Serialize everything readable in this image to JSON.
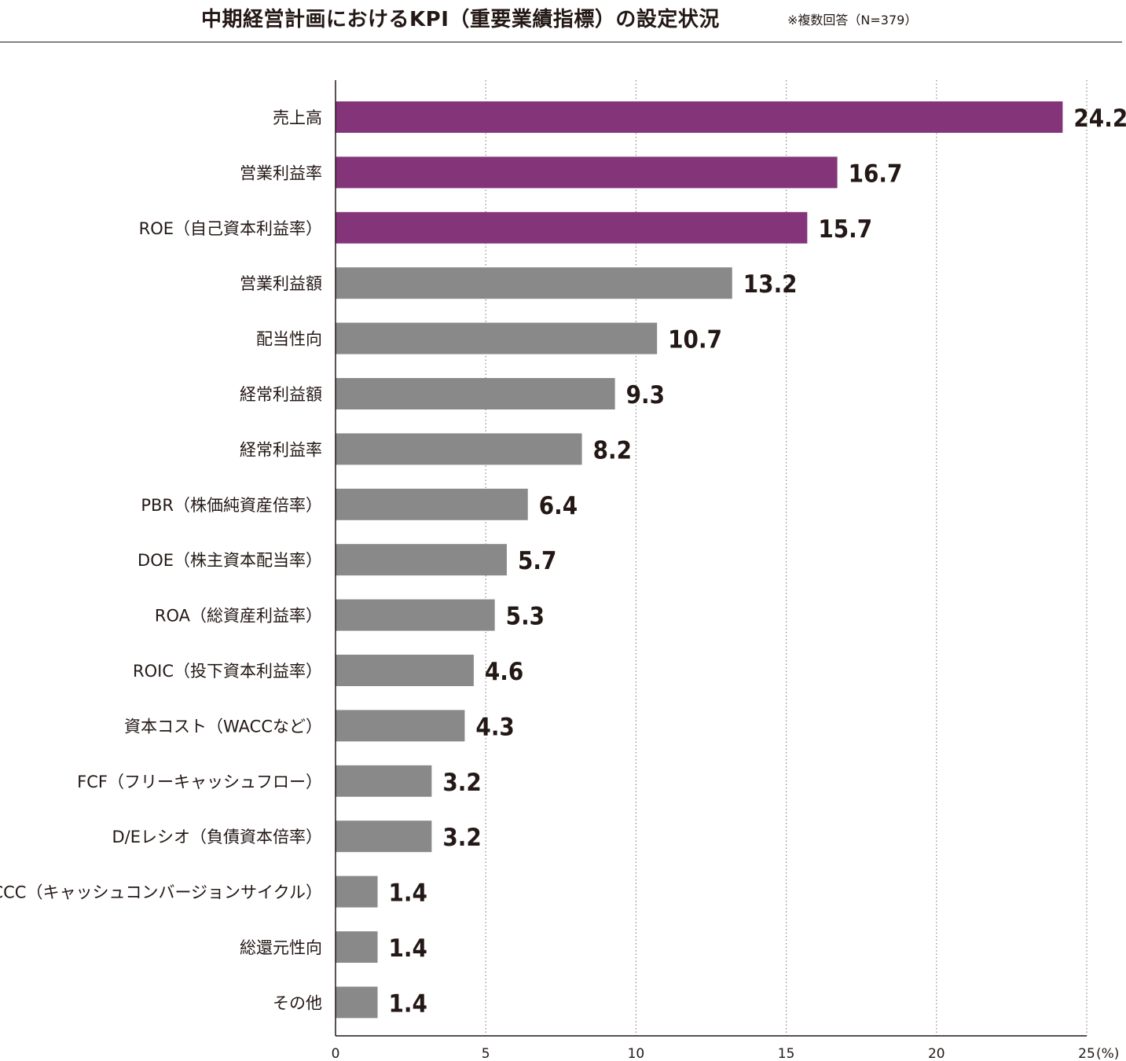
{
  "header": {
    "title": "中期経営計画におけるKPI（重要業績指標）の設定状況",
    "note": "※複数回答（N=379）"
  },
  "colors": {
    "highlight": "#84357A",
    "default": "#898989",
    "text": "#231815"
  },
  "chart_data": {
    "type": "bar",
    "orientation": "horizontal",
    "categories": [
      "売上高",
      "営業利益率",
      "ROE（自己資本利益率）",
      "営業利益額",
      "配当性向",
      "経常利益額",
      "経常利益率",
      "PBR（株価純資産倍率）",
      "DOE（株主資本配当率）",
      "ROA（総資産利益率）",
      "ROIC（投下資本利益率）",
      "資本コスト（WACCなど）",
      "FCF（フリーキャッシュフロー）",
      "D/Eレシオ（負債資本倍率）",
      "CCC（キャッシュコンバージョンサイクル）",
      "総還元性向",
      "その他"
    ],
    "values": [
      24.2,
      16.7,
      15.7,
      13.2,
      10.7,
      9.3,
      8.2,
      6.4,
      5.7,
      5.3,
      4.6,
      4.3,
      3.2,
      3.2,
      1.4,
      1.4,
      1.4
    ],
    "value_labels": [
      "24.2",
      "16.7",
      "15.7",
      "13.2",
      "10.7",
      "9.3",
      "8.2",
      "6.4",
      "5.7",
      "5.3",
      "4.6",
      "4.3",
      "3.2",
      "3.2",
      "1.4",
      "1.4",
      "1.4"
    ],
    "highlight": [
      true,
      true,
      true,
      false,
      false,
      false,
      false,
      false,
      false,
      false,
      false,
      false,
      false,
      false,
      false,
      false,
      false
    ],
    "xlim": [
      0,
      25
    ],
    "xticks": [
      0,
      5,
      10,
      15,
      20,
      25
    ],
    "xtick_labels": [
      "0",
      "5",
      "10",
      "15",
      "20",
      "25"
    ],
    "x_unit": "(%)",
    "grid": "vertical dotted",
    "title": "",
    "xlabel": "",
    "ylabel": ""
  }
}
